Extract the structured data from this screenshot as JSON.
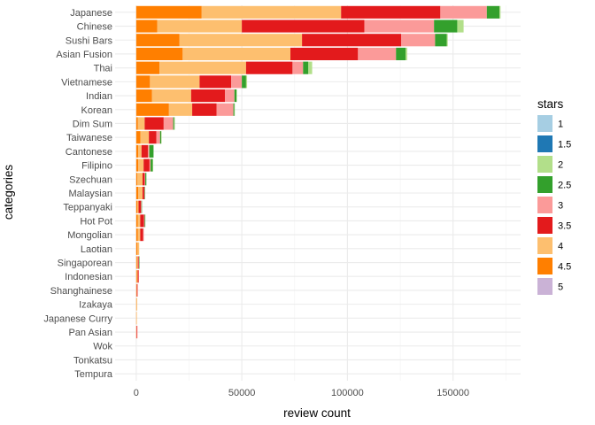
{
  "chart_data": {
    "type": "bar",
    "orientation": "horizontal",
    "stacked": true,
    "xlabel": "review count",
    "ylabel": "categories",
    "xlim": [
      -10000,
      182000
    ],
    "x_ticks": [
      0,
      50000,
      100000,
      150000
    ],
    "x_tick_labels": [
      "0",
      "50000",
      "100000",
      "150000"
    ],
    "grid": true,
    "legend": {
      "title": "stars",
      "position": "right"
    },
    "categories": [
      "Japanese",
      "Chinese",
      "Sushi Bars",
      "Asian Fusion",
      "Thai",
      "Vietnamese",
      "Indian",
      "Korean",
      "Dim Sum",
      "Taiwanese",
      "Cantonese",
      "Filipino",
      "Szechuan",
      "Malaysian",
      "Teppanyaki",
      "Hot Pot",
      "Mongolian",
      "Laotian",
      "Singaporean",
      "Indonesian",
      "Shanghainese",
      "Izakaya",
      "Japanese Curry",
      "Pan Asian",
      "Wok",
      "Tonkatsu",
      "Tempura"
    ],
    "series": [
      {
        "name": "5",
        "color": "#cab2d6",
        "values": [
          0,
          0,
          0,
          0,
          0,
          0,
          0,
          0,
          0,
          0,
          0,
          0,
          0,
          0,
          0,
          0,
          0,
          0,
          0,
          0,
          0,
          0,
          0,
          0,
          0,
          0,
          0
        ]
      },
      {
        "name": "4.5",
        "color": "#ff7f00",
        "values": [
          31000,
          10000,
          20500,
          22000,
          11000,
          6500,
          7500,
          15500,
          800,
          2000,
          1000,
          1000,
          500,
          1000,
          600,
          700,
          800,
          600,
          400,
          300,
          200,
          150,
          100,
          50,
          0,
          0,
          0
        ]
      },
      {
        "name": "4",
        "color": "#fdbf6f",
        "values": [
          66000,
          40000,
          58000,
          51000,
          41000,
          23500,
          18500,
          11000,
          3200,
          4000,
          1500,
          2500,
          2500,
          2000,
          500,
          1200,
          1100,
          800,
          400,
          400,
          100,
          300,
          150,
          50,
          0,
          0,
          0
        ]
      },
      {
        "name": "3.5",
        "color": "#e31a1c",
        "values": [
          47000,
          58000,
          47000,
          32000,
          22000,
          15000,
          16000,
          11500,
          9000,
          3500,
          3000,
          2800,
          1000,
          800,
          1200,
          1800,
          1400,
          0,
          400,
          400,
          300,
          0,
          0,
          300,
          0,
          0,
          0
        ]
      },
      {
        "name": "3",
        "color": "#fb9a99",
        "values": [
          22000,
          33000,
          16000,
          18000,
          5000,
          5000,
          4500,
          8000,
          4500,
          1800,
          700,
          500,
          300,
          200,
          200,
          300,
          300,
          0,
          100,
          100,
          100,
          0,
          0,
          100,
          0,
          0,
          0
        ]
      },
      {
        "name": "2.5",
        "color": "#33a02c",
        "values": [
          6000,
          11000,
          5500,
          4500,
          2500,
          2000,
          1000,
          500,
          500,
          500,
          2000,
          1000,
          500,
          200,
          100,
          300,
          0,
          0,
          100,
          0,
          0,
          0,
          0,
          0,
          0,
          0,
          0
        ]
      },
      {
        "name": "2",
        "color": "#b2df8a",
        "values": [
          500,
          3000,
          500,
          800,
          1800,
          500,
          200,
          200,
          300,
          100,
          0,
          100,
          0,
          0,
          0,
          0,
          0,
          0,
          0,
          0,
          0,
          0,
          0,
          0,
          0,
          0,
          0
        ]
      },
      {
        "name": "1.5",
        "color": "#1f78b4",
        "values": [
          0,
          0,
          0,
          0,
          0,
          0,
          0,
          0,
          0,
          0,
          0,
          0,
          0,
          0,
          0,
          0,
          0,
          0,
          0,
          0,
          0,
          0,
          0,
          0,
          0,
          0,
          0
        ]
      },
      {
        "name": "1",
        "color": "#a6cee3",
        "values": [
          0,
          0,
          0,
          0,
          0,
          0,
          0,
          0,
          0,
          0,
          0,
          0,
          0,
          0,
          0,
          0,
          0,
          0,
          0,
          0,
          0,
          0,
          0,
          0,
          0,
          0,
          0
        ]
      }
    ],
    "legend_order": [
      "1",
      "1.5",
      "2",
      "2.5",
      "3",
      "3.5",
      "4",
      "4.5",
      "5"
    ]
  }
}
